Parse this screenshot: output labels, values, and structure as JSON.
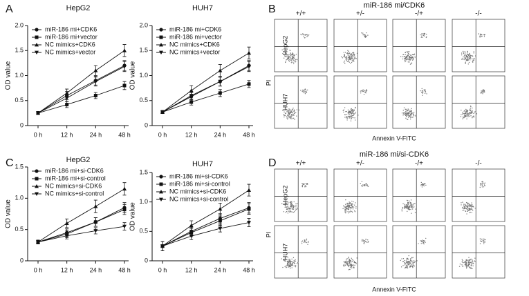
{
  "panel_labels": [
    "A",
    "B",
    "C",
    "D"
  ],
  "chart_data": [
    {
      "type": "line",
      "title": "HepG2",
      "y_label": "OD value",
      "categories": [
        "0 h",
        "12 h",
        "24 h",
        "48 h"
      ],
      "ylim": [
        0,
        2
      ],
      "yticks": [
        0,
        0.5,
        {
          "value": 1,
          "label": "1.0"
        },
        1.5,
        {
          "value": 2,
          "label": "2.0"
        }
      ],
      "legend": "upper left",
      "series": [
        {
          "name": "miR-186 mi+CDK6",
          "color": "#111",
          "marker": "circle",
          "values": [
            0.25,
            0.6,
            0.9,
            1.2
          ],
          "errors": [
            0.03,
            0.08,
            0.09,
            0.1
          ]
        },
        {
          "name": "miR-186 mi+vector",
          "color": "#111",
          "marker": "square",
          "values": [
            0.25,
            0.42,
            0.6,
            0.8
          ],
          "errors": [
            0.03,
            0.06,
            0.06,
            0.08
          ]
        },
        {
          "name": "NC mimics+CDK6",
          "color": "#111",
          "marker": "triangle-up",
          "values": [
            0.25,
            0.65,
            1.1,
            1.5
          ],
          "errors": [
            0.03,
            0.08,
            0.1,
            0.12
          ]
        },
        {
          "name": "NC mimics+vector",
          "color": "#111",
          "marker": "triangle-down",
          "values": [
            0.25,
            0.55,
            0.88,
            1.18
          ],
          "errors": [
            0.03,
            0.07,
            0.09,
            0.1
          ]
        }
      ]
    },
    {
      "type": "line",
      "title": "HUH7",
      "y_label": "OD value",
      "categories": [
        "0 h",
        "12 h",
        "24 h",
        "48 h"
      ],
      "ylim": [
        0,
        2
      ],
      "yticks": [
        0,
        0.5,
        {
          "value": 1,
          "label": "1.0"
        },
        1.5,
        {
          "value": 2,
          "label": "2.0"
        }
      ],
      "legend": "upper left",
      "series": [
        {
          "name": "miR-186 mi+CDK6",
          "color": "#111",
          "marker": "circle",
          "values": [
            0.27,
            0.58,
            0.88,
            1.2
          ],
          "errors": [
            0.03,
            0.08,
            0.09,
            0.1
          ]
        },
        {
          "name": "miR-186 mi+vector",
          "color": "#111",
          "marker": "square",
          "values": [
            0.27,
            0.47,
            0.65,
            0.83
          ],
          "errors": [
            0.03,
            0.06,
            0.07,
            0.07
          ]
        },
        {
          "name": "NC mimics+CDK6",
          "color": "#111",
          "marker": "triangle-up",
          "values": [
            0.27,
            0.7,
            1.1,
            1.45
          ],
          "errors": [
            0.03,
            0.1,
            0.12,
            0.12
          ]
        },
        {
          "name": "NC mimics+vector",
          "color": "#111",
          "marker": "triangle-down",
          "values": [
            0.27,
            0.6,
            0.88,
            1.18
          ],
          "errors": [
            0.03,
            0.08,
            0.09,
            0.1
          ]
        }
      ]
    },
    {
      "type": "line",
      "title": "HepG2",
      "y_label": "OD value",
      "categories": [
        "0 h",
        "12 h",
        "24 h",
        "48 h"
      ],
      "ylim": [
        0,
        1.5
      ],
      "yticks": [
        0,
        0.5,
        {
          "value": 1,
          "label": "1.0"
        },
        1.5
      ],
      "legend": "upper left",
      "series": [
        {
          "name": "miR-186 mi+si-CDK6",
          "color": "#111",
          "marker": "circle",
          "values": [
            0.3,
            0.45,
            0.62,
            0.85
          ],
          "errors": [
            0.03,
            0.06,
            0.07,
            0.08
          ]
        },
        {
          "name": "miR-186 mi+si-control",
          "color": "#111",
          "marker": "square",
          "values": [
            0.3,
            0.43,
            0.62,
            0.82
          ],
          "errors": [
            0.03,
            0.06,
            0.07,
            0.08
          ]
        },
        {
          "name": "NC mimics+si-CDK6",
          "color": "#111",
          "marker": "triangle-up",
          "values": [
            0.3,
            0.6,
            0.87,
            1.15
          ],
          "errors": [
            0.03,
            0.07,
            0.1,
            0.1
          ]
        },
        {
          "name": "NC mimics+si-control",
          "color": "#111",
          "marker": "triangle-down",
          "values": [
            0.3,
            0.4,
            0.48,
            0.55
          ],
          "errors": [
            0.03,
            0.05,
            0.05,
            0.06
          ]
        }
      ]
    },
    {
      "type": "line",
      "title": "HUH7",
      "y_label": "OD value",
      "categories": [
        "0 h",
        "12 h",
        "24 h",
        "48 h"
      ],
      "ylim": [
        0,
        1.5
      ],
      "yticks": [
        0,
        0.5,
        {
          "value": 1,
          "label": "1.0"
        },
        1.5
      ],
      "legend": "upper left",
      "series": [
        {
          "name": "miR-186 mi+si-CDK6",
          "color": "#111",
          "marker": "circle",
          "values": [
            0.25,
            0.5,
            0.72,
            0.9
          ],
          "errors": [
            0.08,
            0.07,
            0.08,
            0.09
          ]
        },
        {
          "name": "miR-186 mi+si-control",
          "color": "#111",
          "marker": "square",
          "values": [
            0.25,
            0.48,
            0.68,
            0.88
          ],
          "errors": [
            0.08,
            0.07,
            0.08,
            0.09
          ]
        },
        {
          "name": "NC mimics+si-CDK6",
          "color": "#111",
          "marker": "triangle-up",
          "values": [
            0.25,
            0.6,
            0.88,
            1.2
          ],
          "errors": [
            0.08,
            0.08,
            0.1,
            0.1
          ]
        },
        {
          "name": "NC mimics+si-control",
          "color": "#111",
          "marker": "triangle-down",
          "values": [
            0.25,
            0.42,
            0.55,
            0.65
          ],
          "errors": [
            0.08,
            0.06,
            0.06,
            0.07
          ]
        }
      ]
    }
  ],
  "flow_panels": [
    {
      "title": "miR-186 mi/CDK6",
      "columns": [
        "+/+",
        "+/-",
        "-/+",
        "-/-"
      ],
      "rows": [
        "HepG2",
        "HUH7"
      ],
      "x_label": "Annexin V-FITC",
      "y_label": "PI"
    },
    {
      "title": "miR-186 mi/si-CDK6",
      "columns": [
        "+/+",
        "+/-",
        "-/+",
        "-/-"
      ],
      "rows": [
        "HepG2",
        "HUH7"
      ],
      "x_label": "Annexin V-FITC",
      "y_label": "PI"
    }
  ]
}
